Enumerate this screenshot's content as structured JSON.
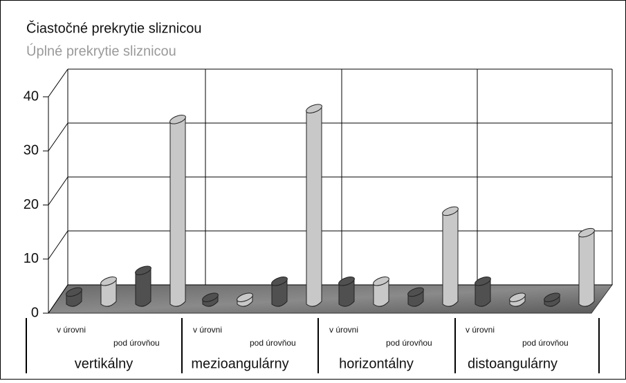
{
  "chart_data": {
    "type": "bar3d",
    "groups": [
      "vertikálny",
      "mezioangulárny",
      "horizontálny",
      "distoangulárny"
    ],
    "categories": [
      "v úrovni",
      "pod úrovňou",
      "v úrovni",
      "pod úrovňou",
      "v úrovni",
      "pod úrovňou",
      "v úrovni",
      "pod úrovňou"
    ],
    "series": [
      {
        "name": "Čiastočné prekrytie sliznicou",
        "color": "#505050",
        "values": [
          2,
          6,
          1,
          4,
          4,
          2,
          4,
          1
        ]
      },
      {
        "name": "Úplné prekrytie sliznicou",
        "color": "#c8c8c8",
        "values": [
          4,
          34,
          1,
          36,
          4,
          17,
          1,
          13
        ]
      }
    ],
    "ylim": [
      0,
      40
    ],
    "yticks": [
      0,
      10,
      20,
      30,
      40
    ],
    "grid": true
  }
}
